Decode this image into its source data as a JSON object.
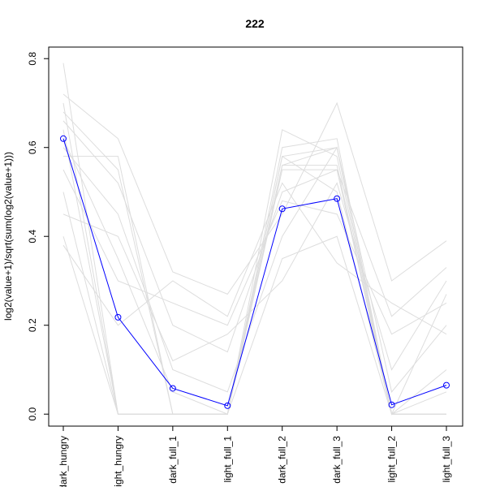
{
  "chart_data": {
    "type": "line",
    "title": "222",
    "y_label": "log2(value+1)/sqrt(sum(log2(value+1)))",
    "categories": [
      "dark_hungry",
      "light_hungry",
      "dark_full_1",
      "light_full_1",
      "dark_full_2",
      "dark_full_3",
      "light_full_2",
      "light_full_3"
    ],
    "ylim": [
      -0.027,
      0.826
    ],
    "yticks": [
      {
        "value": 0,
        "label": "0.0"
      },
      {
        "value": 0.2,
        "label": "0.2"
      },
      {
        "value": 0.4,
        "label": "0.4"
      },
      {
        "value": 0.6,
        "label": "0.6"
      },
      {
        "value": 0.8,
        "label": "0.8"
      }
    ],
    "series": [
      {
        "color": "#dddddd",
        "values": [
          0.79,
          0.0,
          0.0,
          0.0,
          0.6,
          0.62,
          0.0,
          0.0
        ]
      },
      {
        "color": "#dddddd",
        "values": [
          0.72,
          0.62,
          0.32,
          0.27,
          0.45,
          0.7,
          0.3,
          0.39
        ]
      },
      {
        "color": "#dddddd",
        "values": [
          0.7,
          0.0,
          0.0,
          0.0,
          0.56,
          0.6,
          0.0,
          0.0
        ]
      },
      {
        "color": "#dddddd",
        "values": [
          0.66,
          0.52,
          0.2,
          0.14,
          0.5,
          0.55,
          0.22,
          0.33
        ]
      },
      {
        "color": "#dddddd",
        "values": [
          0.64,
          0.0,
          0.0,
          0.0,
          0.58,
          0.5,
          0.0,
          0.0
        ]
      },
      {
        "color": "#dddddd",
        "values": [
          0.6,
          0.45,
          0.1,
          0.05,
          0.4,
          0.6,
          0.05,
          0.2
        ]
      },
      {
        "color": "#dddddd",
        "values": [
          0.58,
          0.58,
          0.0,
          0.0,
          0.55,
          0.55,
          0.0,
          0.1
        ]
      },
      {
        "color": "#dddddd",
        "values": [
          0.55,
          0.3,
          0.25,
          0.2,
          0.48,
          0.45,
          0.18,
          0.25
        ]
      },
      {
        "color": "#dddddd",
        "values": [
          0.5,
          0.0,
          0.0,
          0.0,
          0.64,
          0.58,
          0.0,
          0.0
        ]
      },
      {
        "color": "#dddddd",
        "values": [
          0.45,
          0.4,
          0.12,
          0.18,
          0.3,
          0.52,
          0.1,
          0.3
        ]
      },
      {
        "color": "#dddddd",
        "values": [
          0.4,
          0.0,
          0.0,
          0.0,
          0.35,
          0.4,
          0.0,
          0.0
        ]
      },
      {
        "color": "#dddddd",
        "values": [
          0.38,
          0.2,
          0.3,
          0.22,
          0.52,
          0.34,
          0.25,
          0.18
        ]
      },
      {
        "color": "#dddddd",
        "values": [
          0.68,
          0.55,
          0.0,
          0.0,
          0.56,
          0.56,
          0.0,
          0.05
        ]
      },
      {
        "color": "#dddddd",
        "values": [
          0.62,
          0.35,
          0.05,
          0.0,
          0.58,
          0.6,
          0.0,
          0.27
        ]
      },
      {
        "color": "#0000ff",
        "values": [
          0.62,
          0.218,
          0.058,
          0.019,
          0.462,
          0.485,
          0.021,
          0.065
        ]
      }
    ]
  }
}
